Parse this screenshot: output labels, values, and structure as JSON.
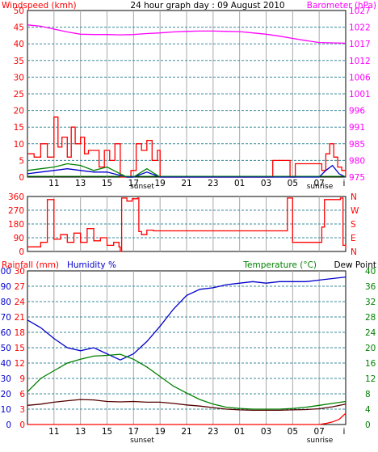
{
  "title": "24 hour graph day : 09 August 2010",
  "panel1": {
    "left_label": "Windspeed (kmh)",
    "right_label": "Barometer (hPa)",
    "left_ticks": [
      "0",
      "5",
      "10",
      "15",
      "20",
      "25",
      "30",
      "35",
      "40",
      "45",
      "50"
    ],
    "right_ticks": [
      "975",
      "980",
      "985",
      "991",
      "996",
      "1001",
      "1006",
      "1012",
      "1017",
      "1022",
      "1027"
    ],
    "x_ticks": [
      "11",
      "13",
      "15",
      "17",
      "19",
      "21",
      "23",
      "01",
      "03",
      "05",
      "07",
      "i"
    ],
    "sunset_label": "sunset",
    "sunrise_label": "sunrise"
  },
  "panel2": {
    "left_ticks": [
      "0",
      "90",
      "180",
      "270",
      "360"
    ],
    "right_ticks": [
      "N",
      "E",
      "S",
      "W",
      "N"
    ]
  },
  "panel3": {
    "left_label_rain": "Rainfall (mm)",
    "left_label_hum": "Humidity %",
    "right_label": "Temperature (°C)",
    "right_label2": "Dew Point",
    "hum_ticks": [
      "0",
      "10",
      "20",
      "30",
      "40",
      "50",
      "60",
      "70",
      "80",
      "90",
      "100"
    ],
    "rain_ticks": [
      "0",
      "3",
      "6",
      "9",
      "12",
      "15",
      "18",
      "21",
      "24",
      "27",
      "30"
    ],
    "right_ticks": [
      "0",
      "4",
      "8",
      "12",
      "16",
      "20",
      "24",
      "28",
      "32",
      "36",
      "40"
    ],
    "x_ticks": [
      "11",
      "13",
      "15",
      "17",
      "19",
      "21",
      "23",
      "01",
      "03",
      "05",
      "07",
      "i"
    ],
    "sunset_label": "sunset",
    "sunrise_label": "sunrise"
  },
  "colors": {
    "frame": "#000000",
    "grid": "#3a8a9a",
    "vgrid": "#a8a8a8",
    "wind": "#ff0000",
    "gust_green": "#008000",
    "avg_blue": "#0000cc",
    "barometer": "#ff00ff",
    "direction": "#ff0000",
    "humidity": "#0000cc",
    "temperature": "#008000",
    "dewpoint": "#550000",
    "rain": "#ff0000",
    "title": "#000000"
  },
  "chart_data": [
    {
      "type": "line",
      "x_unit": "hour of day",
      "x_range": [
        "09:00",
        "09:00 next day"
      ],
      "ylim_left": [
        0,
        50
      ],
      "ylim_right": [
        975,
        1027
      ],
      "series": [
        {
          "axis": "right",
          "x": [
            9,
            10,
            11,
            12,
            13,
            14,
            15,
            16,
            17,
            18,
            19,
            20,
            21,
            22,
            23,
            24,
            25,
            26,
            27,
            28,
            29,
            30,
            31,
            32,
            33
          ],
          "values": [
            1022.5,
            1022.1,
            1021.2,
            1020.3,
            1019.6,
            1019.5,
            1019.5,
            1019.4,
            1019.5,
            1019.8,
            1020.0,
            1020.3,
            1020.5,
            1020.6,
            1020.6,
            1020.5,
            1020.4,
            1020.0,
            1019.6,
            1019.0,
            1018.3,
            1017.6,
            1017.0,
            1016.9,
            1016.8
          ]
        },
        {
          "axis": "left",
          "x": [
            9,
            9.5,
            10,
            10.5,
            11,
            11.3,
            11.6,
            12,
            12.3,
            12.6,
            13,
            13.3,
            13.6,
            14,
            14.4,
            14.8,
            15.2,
            15.6,
            16,
            16.4,
            16.8,
            17.2,
            17.6,
            18,
            18.4,
            18.8,
            19.0,
            27.2,
            27.5,
            28.8,
            29.2,
            31.2,
            31.5,
            31.8,
            32.1,
            32.4,
            32.7,
            33
          ],
          "values": [
            7,
            6,
            10,
            6,
            18,
            9,
            12,
            6,
            15,
            10,
            12,
            7,
            8,
            8,
            3,
            8,
            5,
            10,
            0,
            0,
            2,
            10,
            8,
            11,
            5,
            8,
            0,
            0,
            5,
            0,
            4,
            2,
            7,
            10,
            6,
            3,
            2,
            0
          ]
        },
        {
          "axis": "left",
          "x": [
            9,
            10,
            11,
            12,
            13,
            14,
            15,
            16,
            16.5,
            17,
            18,
            19
          ],
          "values": [
            2,
            2.5,
            3,
            4,
            3.5,
            2,
            3,
            1,
            0,
            0,
            2.5,
            0
          ]
        },
        {
          "axis": "left",
          "x": [
            9,
            10,
            11,
            12,
            13,
            14,
            15,
            16,
            16.5,
            17,
            18,
            19,
            29,
            31,
            31.5,
            32,
            32.5,
            33
          ],
          "values": [
            1,
            1.5,
            2,
            2.5,
            2,
            1.5,
            1.5,
            0.5,
            0,
            0,
            1.5,
            0,
            0,
            0,
            2,
            3.5,
            1,
            0
          ]
        }
      ]
    },
    {
      "type": "line",
      "x_unit": "hour of day",
      "ylim": [
        0,
        360
      ],
      "series": [
        {
          "x": [
            9,
            10,
            10.5,
            11,
            11.5,
            12,
            12.5,
            13,
            13.5,
            14,
            14.5,
            15,
            15.5,
            15.9,
            16,
            16.1,
            16.5,
            16.9,
            17.3,
            17.4,
            17.6,
            18,
            18.5,
            19,
            22,
            25,
            28.5,
            28.6,
            28.8,
            29,
            31,
            31.2,
            31.4,
            32.5,
            32.6,
            32.8,
            33
          ],
          "values": [
            30,
            60,
            340,
            80,
            110,
            60,
            120,
            60,
            150,
            70,
            90,
            40,
            60,
            30,
            0,
            350,
            330,
            345,
            350,
            130,
            110,
            140,
            135,
            135,
            135,
            135,
            135,
            350,
            350,
            60,
            60,
            160,
            340,
            340,
            350,
            40,
            20
          ]
        }
      ]
    },
    {
      "type": "line",
      "x_unit": "hour of day",
      "ylim_humidity": [
        0,
        100
      ],
      "ylim_rain": [
        0,
        30
      ],
      "ylim_temperature": [
        0,
        40
      ],
      "series": [
        {
          "axis": "humidity",
          "x": [
            9,
            10,
            11,
            12,
            13,
            14,
            15,
            16,
            17,
            18,
            19,
            20,
            21,
            22,
            23,
            24,
            25,
            26,
            27,
            28,
            29,
            30,
            31,
            32,
            33
          ],
          "values": [
            68,
            63,
            56,
            50,
            48,
            50,
            46,
            42,
            46,
            54,
            64,
            75,
            84,
            88,
            89,
            91,
            92,
            93,
            92,
            93,
            93,
            93,
            94,
            95,
            96
          ]
        },
        {
          "axis": "temperature",
          "x": [
            9,
            10,
            11,
            12,
            13,
            14,
            15,
            16,
            17,
            18,
            19,
            20,
            21,
            22,
            23,
            24,
            25,
            26,
            27,
            28,
            29,
            30,
            31,
            32,
            33
          ],
          "values": [
            8.5,
            12,
            14,
            16,
            17,
            17.8,
            18,
            18.3,
            17,
            15,
            12.5,
            10,
            8.2,
            6.5,
            5.3,
            4.5,
            4.2,
            4,
            4,
            4,
            4.2,
            4.5,
            5,
            5.5,
            6
          ]
        },
        {
          "axis": "temperature",
          "x": [
            9,
            10,
            11,
            12,
            13,
            14,
            15,
            16,
            17,
            18,
            19,
            20,
            21,
            22,
            23,
            24,
            25,
            26,
            27,
            28,
            29,
            30,
            31,
            32,
            33
          ],
          "values": [
            5,
            5.3,
            5.8,
            6.2,
            6.5,
            6.4,
            6,
            5.9,
            6,
            5.8,
            5.8,
            5.5,
            5.1,
            4.8,
            4.4,
            4,
            3.8,
            3.7,
            3.7,
            3.7,
            3.8,
            3.9,
            4.1,
            4.6,
            5.3
          ]
        },
        {
          "axis": "rain",
          "x": [
            9,
            31,
            31.5,
            32,
            32.5,
            33
          ],
          "values": [
            0,
            0,
            0.2,
            0.5,
            1,
            2.2
          ]
        }
      ]
    }
  ]
}
